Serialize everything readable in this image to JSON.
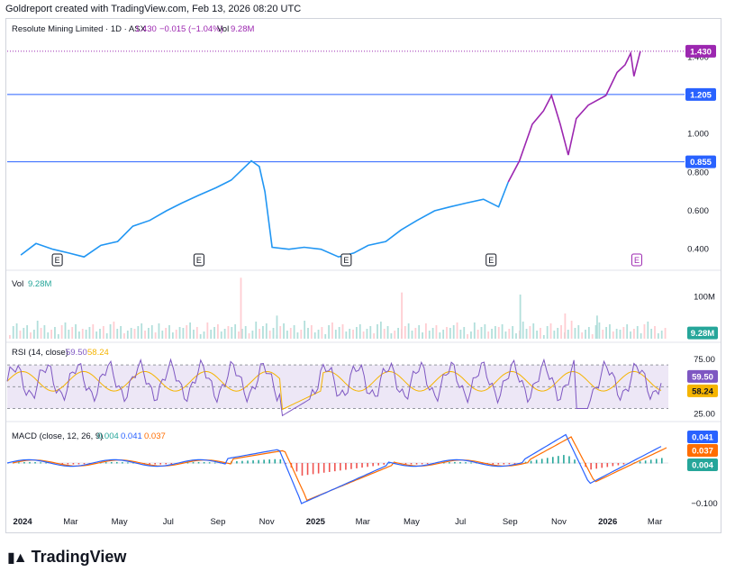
{
  "credit": "Goldreport created with TradingView.com, Feb 13, 2026 08:20 UTC",
  "footer_brand": "TradingView",
  "colors": {
    "price_blue": "#2196f3",
    "price_purple": "#9c27b0",
    "level_line": "#2962ff",
    "rsi_line": "#7e57c2",
    "rsi_ma": "#f5b400",
    "rsi_band": "#ede7f6",
    "macd_line": "#2962ff",
    "signal_line": "#ff6d00",
    "hist_up": "#26a69a",
    "hist_down": "#ef5350",
    "vol_up": "#b2dfdb",
    "vol_down": "#ffcdd2"
  },
  "chart_data": [
    {
      "type": "line",
      "pane": "price",
      "legend": {
        "symbol": "Resolute Mining Limited · 1D · ASX",
        "last": "1.430",
        "change": "−0.015 (−1.04%)",
        "vol_label": "Vol",
        "vol_value": "9.28M"
      },
      "x_ticks": [
        "2024",
        "Mar",
        "May",
        "Jul",
        "Sep",
        "Nov",
        "2025",
        "Mar",
        "May",
        "Jul",
        "Sep",
        "Nov",
        "2026",
        "Mar"
      ],
      "y_ticks": [
        "0.400",
        "0.600",
        "0.800",
        "1.000",
        "1.400"
      ],
      "ylim": [
        0.3,
        1.5
      ],
      "x": [
        "2024-01-01",
        "2024-01-20",
        "2024-02-10",
        "2024-03-01",
        "2024-03-20",
        "2024-04-10",
        "2024-05-01",
        "2024-05-20",
        "2024-06-10",
        "2024-07-01",
        "2024-07-20",
        "2024-08-10",
        "2024-09-01",
        "2024-09-20",
        "2024-10-05",
        "2024-10-15",
        "2024-10-25",
        "2024-11-01",
        "2024-11-10",
        "2024-12-01",
        "2024-12-20",
        "2025-01-10",
        "2025-02-01",
        "2025-02-20",
        "2025-03-10",
        "2025-04-01",
        "2025-04-20",
        "2025-05-10",
        "2025-06-01",
        "2025-06-20",
        "2025-07-10",
        "2025-08-01",
        "2025-08-20",
        "2025-09-01",
        "2025-09-15",
        "2025-10-01",
        "2025-10-15",
        "2025-10-25",
        "2025-11-05",
        "2025-11-15",
        "2025-11-25",
        "2025-12-10",
        "2026-01-01",
        "2026-01-15",
        "2026-01-25",
        "2026-02-01",
        "2026-02-05",
        "2026-02-13"
      ],
      "y": [
        0.37,
        0.43,
        0.4,
        0.38,
        0.36,
        0.42,
        0.44,
        0.52,
        0.55,
        0.6,
        0.64,
        0.68,
        0.72,
        0.76,
        0.82,
        0.86,
        0.83,
        0.7,
        0.41,
        0.4,
        0.41,
        0.4,
        0.36,
        0.38,
        0.42,
        0.44,
        0.5,
        0.55,
        0.6,
        0.62,
        0.64,
        0.66,
        0.62,
        0.75,
        0.86,
        1.05,
        1.12,
        1.2,
        1.05,
        0.89,
        1.08,
        1.15,
        1.2,
        1.32,
        1.36,
        1.42,
        1.3,
        1.43
      ],
      "levels": [
        {
          "value": 1.43,
          "label": "1.430",
          "style": "dotted"
        },
        {
          "value": 1.205,
          "label": "1.205",
          "style": "solid"
        },
        {
          "value": 0.855,
          "label": "0.855",
          "style": "solid"
        }
      ],
      "earnings_markers": [
        "E",
        "E",
        "E",
        "E",
        "E"
      ]
    },
    {
      "type": "bar",
      "pane": "volume",
      "legend": {
        "label": "Vol",
        "value": "9.28M"
      },
      "y_ticks": [
        "100M"
      ],
      "last_label": "9.28M",
      "spikes": [
        {
          "date": "2024-10-01",
          "value": 145
        },
        {
          "date": "2024-11-15",
          "value": 55
        },
        {
          "date": "2025-04-20",
          "value": 110
        },
        {
          "date": "2025-09-15",
          "value": 105
        },
        {
          "date": "2025-11-10",
          "value": 60
        },
        {
          "date": "2025-12-20",
          "value": 55
        }
      ],
      "ylim": [
        0,
        150
      ]
    },
    {
      "type": "line",
      "pane": "rsi",
      "legend": {
        "label": "RSI (14, close)",
        "rsi": "59.50",
        "ma": "58.24"
      },
      "y_ticks": [
        "75.00",
        "25.00"
      ],
      "bands": [
        70,
        30
      ],
      "ylim": [
        18,
        90
      ],
      "last_rsi": "59.50",
      "last_ma": "58.24"
    },
    {
      "type": "line",
      "pane": "macd",
      "legend": {
        "label": "MACD (close, 12, 26, 9)",
        "hist": "0.004",
        "macd": "0.041",
        "signal": "0.037"
      },
      "y_ticks": [
        "−0.100"
      ],
      "ylim": [
        -0.12,
        0.1
      ],
      "last_macd": "0.041",
      "last_signal": "0.037",
      "last_hist": "0.004"
    }
  ]
}
